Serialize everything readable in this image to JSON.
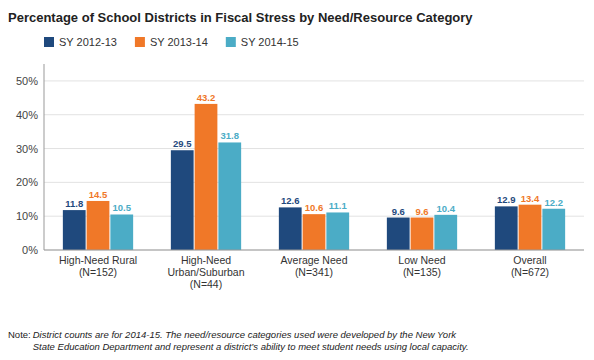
{
  "chart_data": {
    "type": "bar",
    "title": "Percentage of School Districts in Fiscal Stress by Need/Resource Category",
    "categories": [
      "High-Need Rural\n(N=152)",
      "High-Need\nUrban/Suburban\n(N=44)",
      "Average Need\n(N=341)",
      "Low Need\n(N=135)",
      "Overall\n(N=672)"
    ],
    "series": [
      {
        "name": "SY 2012-13",
        "color": "#1F497D",
        "values": [
          11.8,
          29.5,
          12.6,
          9.6,
          12.9
        ]
      },
      {
        "name": "SY 2013-14",
        "color": "#F07828",
        "values": [
          14.5,
          43.2,
          10.6,
          9.6,
          13.4
        ]
      },
      {
        "name": "SY 2014-15",
        "color": "#4BACC6",
        "values": [
          10.5,
          31.8,
          11.1,
          10.4,
          12.2
        ]
      }
    ],
    "ylim": [
      0,
      55
    ],
    "yticks": [
      {
        "value": 0,
        "label": "0%"
      },
      {
        "value": 10,
        "label": "10%"
      },
      {
        "value": 20,
        "label": "20%"
      },
      {
        "value": 30,
        "label": "30%"
      },
      {
        "value": 40,
        "label": "40%"
      },
      {
        "value": 50,
        "label": "50%"
      }
    ],
    "grid": true,
    "legend": "upper left",
    "data_labels": true,
    "annotations": [
      "Note: ",
      "District counts are for 2014-15. The need/resource categories used were developed by the New York\nState Education Department and represent a district’s ability to meet student needs using local capacity."
    ]
  }
}
